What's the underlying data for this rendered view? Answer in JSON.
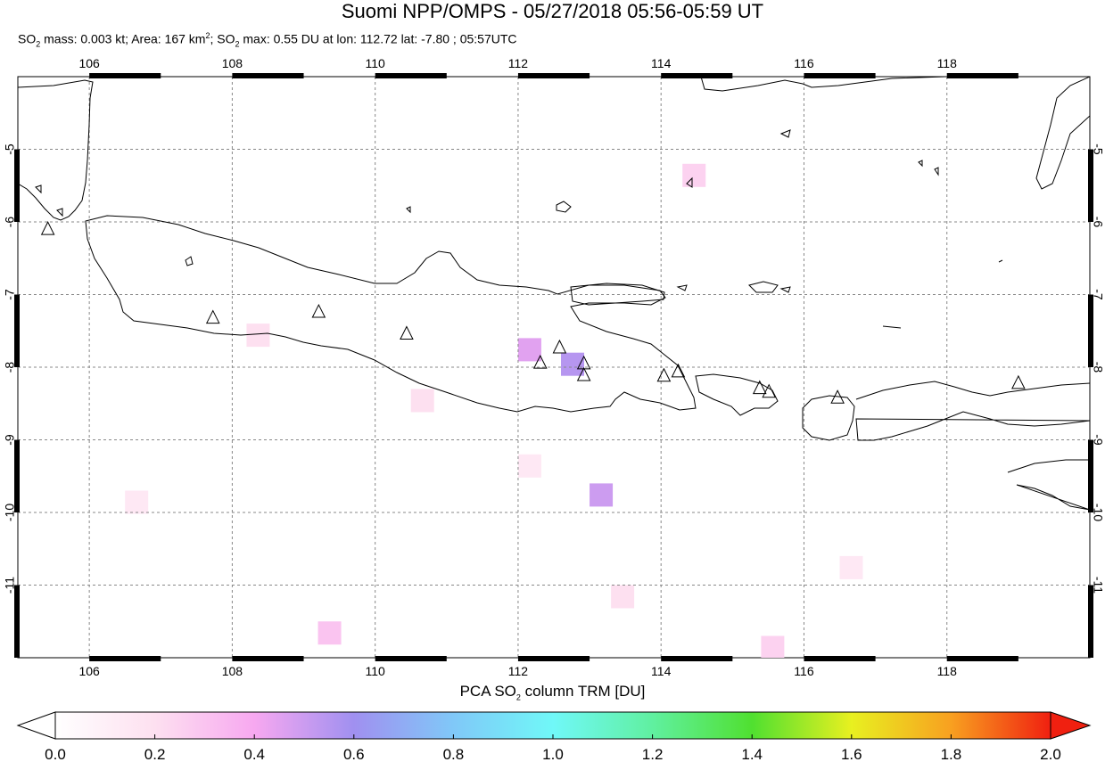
{
  "title": "Suomi NPP/OMPS - 05/27/2018 05:56-05:59 UT",
  "stats": {
    "so2": "SO",
    "sub2": "2",
    "mass_text": " mass: 0.003 kt; Area: 167 km",
    "sup2": "2",
    "max_text": "; SO",
    "max_rest": " max: 0.55 DU at lon: 112.72 lat: -7.80 ; 05:57UTC"
  },
  "map": {
    "lon_range": [
      105,
      120
    ],
    "lat_range": [
      -12,
      -4
    ],
    "lon_ticks": [
      "106",
      "108",
      "110",
      "112",
      "114",
      "116",
      "118"
    ],
    "lat_ticks": [
      "-5",
      "-6",
      "-7",
      "-8",
      "-9",
      "-10",
      "-11"
    ],
    "lon_values": [
      106,
      108,
      110,
      112,
      114,
      116,
      118
    ],
    "lat_values": [
      -5,
      -6,
      -7,
      -8,
      -9,
      -10,
      -11
    ],
    "volcanoes": [
      [
        105.42,
        -6.1
      ],
      [
        107.73,
        -7.32
      ],
      [
        109.21,
        -7.24
      ],
      [
        110.44,
        -7.54
      ],
      [
        112.31,
        -7.94
      ],
      [
        112.58,
        -7.73
      ],
      [
        112.92,
        -7.95
      ],
      [
        112.92,
        -8.11
      ],
      [
        114.04,
        -8.12
      ],
      [
        114.24,
        -8.06
      ],
      [
        115.38,
        -8.29
      ],
      [
        115.51,
        -8.34
      ],
      [
        116.47,
        -8.42
      ],
      [
        119.0,
        -8.22
      ]
    ],
    "so2_cells": [
      [
        112.0,
        -7.6,
        0.45
      ],
      [
        112.6,
        -7.8,
        0.55
      ],
      [
        113.0,
        -9.6,
        0.5
      ],
      [
        109.2,
        -11.5,
        0.3
      ],
      [
        115.4,
        -11.7,
        0.25
      ],
      [
        114.3,
        -5.2,
        0.25
      ],
      [
        108.2,
        -7.4,
        0.2
      ],
      [
        110.5,
        -8.3,
        0.2
      ],
      [
        106.5,
        -9.7,
        0.15
      ],
      [
        113.3,
        -11.0,
        0.2
      ],
      [
        112.0,
        -9.2,
        0.15
      ],
      [
        116.5,
        -10.6,
        0.15
      ]
    ]
  },
  "colorbar": {
    "title_pre": "PCA SO",
    "title_sub": "2",
    "title_post": " column TRM [DU]",
    "ticks": [
      "0.0",
      "0.2",
      "0.4",
      "0.6",
      "0.8",
      "1.0",
      "1.2",
      "1.4",
      "1.6",
      "1.8",
      "2.0"
    ],
    "colors": [
      "#ffffff",
      "#fde0f0",
      "#f7a8f0",
      "#a090f0",
      "#80c8f8",
      "#70f8f8",
      "#60f0a0",
      "#50e030",
      "#e8f020",
      "#f8a020",
      "#f02010"
    ]
  }
}
